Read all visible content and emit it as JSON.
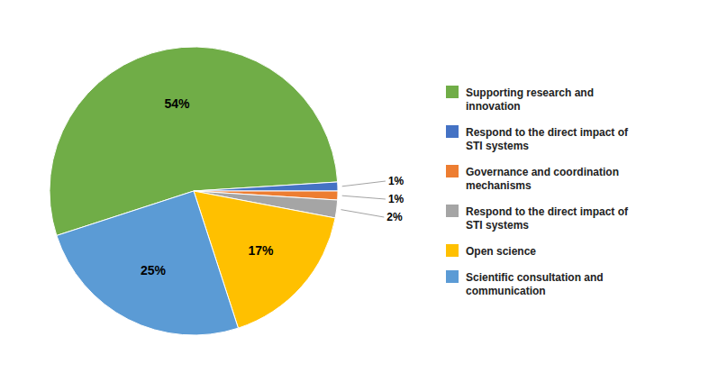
{
  "chart_data": {
    "type": "pie",
    "categories": [
      "Supporting research and\ninnovation",
      "Respond to the direct impact of\nSTI systems",
      "Governance and coordination\nmechanisms",
      "Respond to the direct impact of\nSTI systems",
      "Open science",
      "Scientific consultation and\ncommunication"
    ],
    "values": [
      54,
      1,
      1,
      2,
      17,
      25
    ],
    "value_labels": [
      "54%",
      "1%",
      "1%",
      "2%",
      "17%",
      "25%"
    ],
    "colors": [
      "#70AD47",
      "#4472C4",
      "#ED7D31",
      "#A5A5A5",
      "#FFC000",
      "#5B9BD5"
    ],
    "data_labels": true,
    "legend": "right"
  }
}
